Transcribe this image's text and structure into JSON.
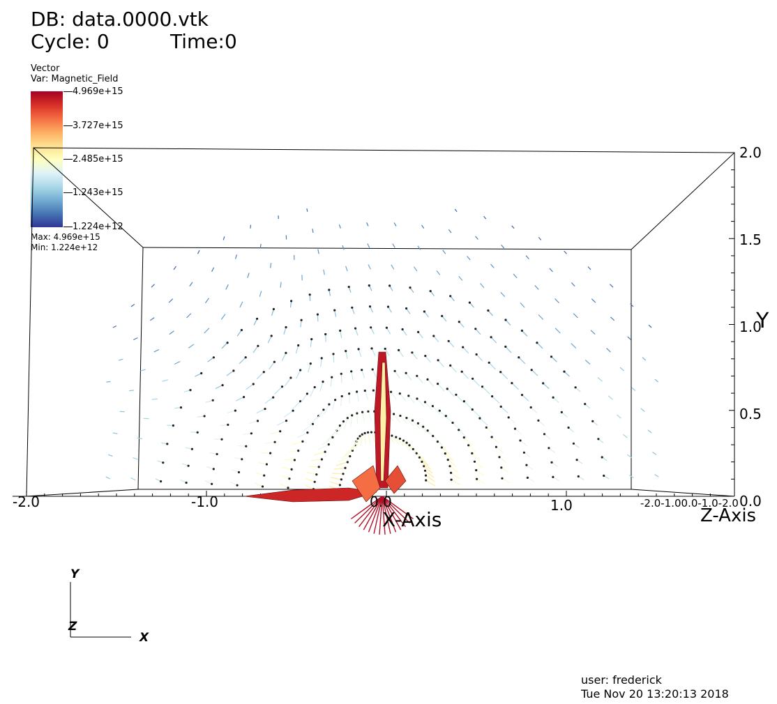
{
  "header": {
    "db": "DB: data.0000.vtk",
    "cycle": "Cycle: 0",
    "time": "Time:0"
  },
  "legend": {
    "plot_type": "Vector",
    "variable": "Var: Magnetic_Field",
    "ticks": [
      "4.969e+15",
      "3.727e+15",
      "2.485e+15",
      "1.243e+15",
      "1.224e+12"
    ],
    "max": "Max:  4.969e+15",
    "min": "Min:  1.224e+12",
    "colormap": [
      "#313695",
      "#4575b4",
      "#74add1",
      "#abd9e9",
      "#e0f3f8",
      "#ffffbf",
      "#fee090",
      "#fdae61",
      "#f46d43",
      "#d73027",
      "#a50026"
    ]
  },
  "axes": {
    "x_ticks": [
      "-2.0",
      "-1.0",
      "0.0",
      "1.0"
    ],
    "y_ticks": [
      "2.0",
      "1.5",
      "1.0",
      "0.5",
      "0.0"
    ],
    "y_title": "Y",
    "x_title": "X-Axis",
    "z_title": "Z-Axis",
    "z_ticks_text": "-2.0-1.00.0-1.0-2.0"
  },
  "triad": {
    "y": "Y",
    "z": "Z",
    "x": "X"
  },
  "footer": {
    "user": "user: frederick",
    "date": "Tue Nov 20 13:20:13 2018"
  }
}
